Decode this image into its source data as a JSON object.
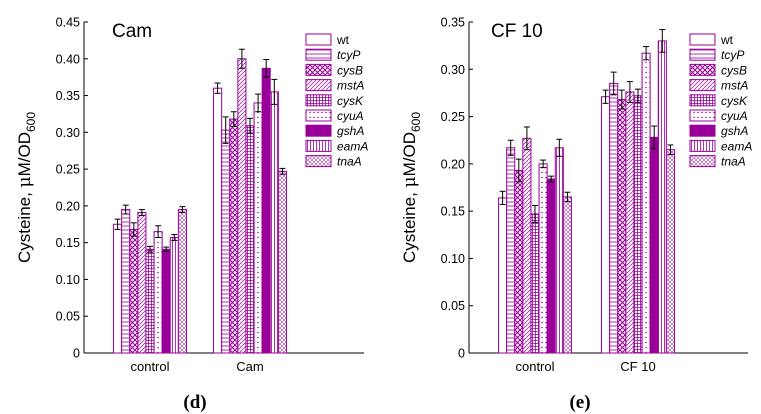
{
  "colors": {
    "purple": "#990099",
    "axis": "#000000"
  },
  "figure": {
    "panel_labels": [
      "(d)",
      "(e)"
    ]
  },
  "chart_data": [
    {
      "type": "bar",
      "title": "Cam",
      "ylabel": "Cysteine, μM/OD600",
      "ylabel_text": "Cysteine, ",
      "ylabel_mu": "μ",
      "ylabel_unit": "M/OD",
      "ylabel_sub": "600",
      "xlabel": "",
      "ylim": [
        0,
        0.45
      ],
      "yticks": [
        "0",
        "0.05",
        "0.10",
        "0.15",
        "0.20",
        "0.25",
        "0.30",
        "0.35",
        "0.40",
        "0.45"
      ],
      "categories": [
        "control",
        "Cam"
      ],
      "legend_position": "top-right",
      "series": [
        {
          "name": "wt",
          "pattern": "none",
          "values": [
            0.175,
            0.36
          ],
          "errors": [
            0.007,
            0.007
          ]
        },
        {
          "name": "tcyP",
          "pattern": "hlines",
          "values": [
            0.195,
            0.303
          ],
          "errors": [
            0.006,
            0.018
          ]
        },
        {
          "name": "cysB",
          "pattern": "crosshatch",
          "values": [
            0.168,
            0.318
          ],
          "errors": [
            0.009,
            0.01
          ]
        },
        {
          "name": "mstA",
          "pattern": "diag",
          "values": [
            0.191,
            0.4
          ],
          "errors": [
            0.004,
            0.013
          ]
        },
        {
          "name": "cysK",
          "pattern": "grid",
          "values": [
            0.141,
            0.309
          ],
          "errors": [
            0.004,
            0.01
          ]
        },
        {
          "name": "cyuA",
          "pattern": "dots",
          "values": [
            0.165,
            0.34
          ],
          "errors": [
            0.008,
            0.012
          ]
        },
        {
          "name": "gshA",
          "pattern": "solid",
          "values": [
            0.141,
            0.387
          ],
          "errors": [
            0.003,
            0.012
          ]
        },
        {
          "name": "eamA",
          "pattern": "vlines",
          "values": [
            0.157,
            0.355
          ],
          "errors": [
            0.004,
            0.017
          ]
        },
        {
          "name": "tnaA",
          "pattern": "zigzag",
          "values": [
            0.195,
            0.247
          ],
          "errors": [
            0.004,
            0.004
          ]
        }
      ]
    },
    {
      "type": "bar",
      "title": "CF 10",
      "ylabel": "Cysteine, μM/OD600",
      "ylabel_text": "Cysteine, ",
      "ylabel_mu": "μ",
      "ylabel_unit": "M/OD",
      "ylabel_sub": "600",
      "xlabel": "",
      "ylim": [
        0,
        0.35
      ],
      "yticks": [
        "0",
        "0.05",
        "0.10",
        "0.15",
        "0.20",
        "0.25",
        "0.30",
        "0.35"
      ],
      "categories": [
        "control",
        "CF 10"
      ],
      "legend_position": "top-right",
      "series": [
        {
          "name": "wt",
          "pattern": "none",
          "values": [
            0.164,
            0.271
          ],
          "errors": [
            0.007,
            0.007
          ]
        },
        {
          "name": "tcyP",
          "pattern": "hlines",
          "values": [
            0.217,
            0.285
          ],
          "errors": [
            0.008,
            0.012
          ]
        },
        {
          "name": "cysB",
          "pattern": "crosshatch",
          "values": [
            0.193,
            0.268
          ],
          "errors": [
            0.012,
            0.01
          ]
        },
        {
          "name": "mstA",
          "pattern": "diag",
          "values": [
            0.227,
            0.276
          ],
          "errors": [
            0.012,
            0.011
          ]
        },
        {
          "name": "cysK",
          "pattern": "grid",
          "values": [
            0.147,
            0.272
          ],
          "errors": [
            0.009,
            0.007
          ]
        },
        {
          "name": "cyuA",
          "pattern": "dots",
          "values": [
            0.2,
            0.317
          ],
          "errors": [
            0.004,
            0.007
          ]
        },
        {
          "name": "gshA",
          "pattern": "solid",
          "values": [
            0.184,
            0.228
          ],
          "errors": [
            0.003,
            0.012
          ]
        },
        {
          "name": "eamA",
          "pattern": "vlines",
          "values": [
            0.217,
            0.33
          ],
          "errors": [
            0.009,
            0.012
          ]
        },
        {
          "name": "tnaA",
          "pattern": "zigzag",
          "values": [
            0.165,
            0.215
          ],
          "errors": [
            0.005,
            0.005
          ]
        }
      ]
    }
  ]
}
